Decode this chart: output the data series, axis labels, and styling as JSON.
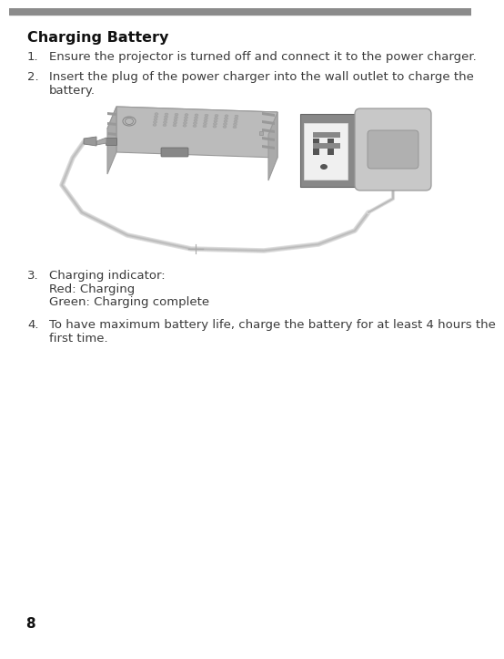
{
  "title": "Charging Battery",
  "header_bar_color": "#8B8B8B",
  "background_color": "#FFFFFF",
  "text_color": "#333333",
  "item1": "Ensure the projector is turned off and connect it to the power charger.",
  "item2_line1": "Insert the plug of the power charger into the wall outlet to charge the",
  "item2_line2": "battery.",
  "item3_line1": "Charging indicator:",
  "item3_line2": "Red: Charging",
  "item3_line3": "Green: Charging complete",
  "item4_line1": "To have maximum battery life, charge the battery for at least 4 hours the",
  "item4_line2": "first time.",
  "page_number": "8",
  "font_size_title": 11.5,
  "font_size_body": 9.5,
  "font_size_page": 11,
  "body_color": "#3A3A3A",
  "proj_body_color": "#C8C8C8",
  "proj_edge_color": "#999999",
  "outlet_bg_color": "#888888",
  "socket_color": "#DDDDDD",
  "charger_color": "#C8C8C8",
  "cable_color": "#D0D0D0"
}
